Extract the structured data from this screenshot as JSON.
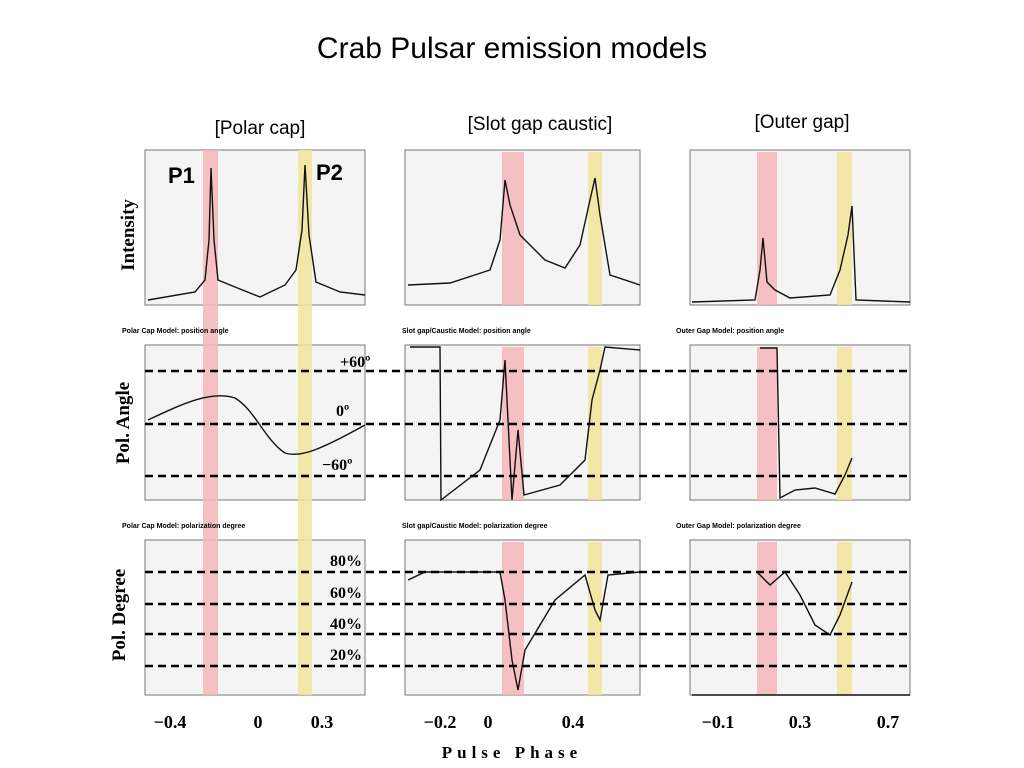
{
  "title": "Crab Pulsar emission models",
  "columns": [
    {
      "label": "[Polar cap]",
      "headers": [
        "Polar Cap Model: position angle",
        "Polar Cap Model: polarization degree"
      ],
      "phase_labels": [
        "−0.4",
        "0",
        "0.3"
      ]
    },
    {
      "label": "[Slot gap caustic]",
      "headers": [
        "Slot gap/Caustic Model: position angle",
        "Slot gap/Caustic Model: polarization degree"
      ],
      "phase_labels": [
        "−0.2",
        "0",
        "0.4"
      ]
    },
    {
      "label": "[Outer gap]",
      "headers": [
        "Outer Gap Model: position angle",
        "Outer Gap Model: polarization degree"
      ],
      "phase_labels": [
        "−0.1",
        "0.3",
        "0.7"
      ]
    }
  ],
  "rows": [
    "Intensity",
    "Pol. Angle",
    "Pol. Degree"
  ],
  "peaks": [
    "P1",
    "P2"
  ],
  "angle_marks": [
    "+60º",
    "0º",
    "−60º"
  ],
  "degree_marks": [
    "80%",
    "60%",
    "40%",
    "20%"
  ],
  "x_axis_label": "Pulse Phase"
}
